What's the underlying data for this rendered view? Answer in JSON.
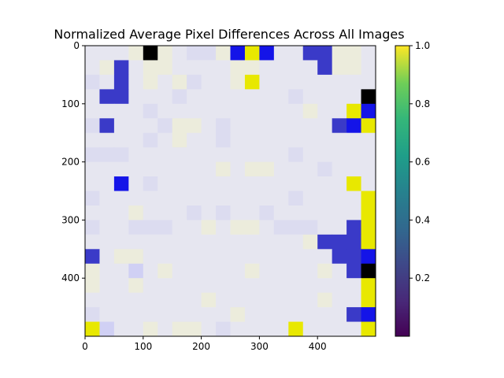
{
  "chart_data": {
    "type": "heatmap",
    "title": "Normalized Average Pixel Differences Across All Images",
    "grid": false,
    "xlim": [
      0,
      500
    ],
    "ylim": [
      500,
      0
    ],
    "x_ticks": [
      "0",
      "100",
      "200",
      "300",
      "400"
    ],
    "x_tick_values": [
      0,
      100,
      200,
      300,
      400
    ],
    "y_ticks": [
      "0",
      "100",
      "200",
      "300",
      "400"
    ],
    "y_tick_values": [
      0,
      100,
      200,
      300,
      400
    ],
    "colorbar": {
      "range": [
        0.0,
        1.0
      ],
      "ticks": [
        "0.2",
        "0.4",
        "0.6",
        "0.8",
        "1.0"
      ],
      "tick_values": [
        0.2,
        0.4,
        0.6,
        0.8,
        1.0
      ],
      "colormap": "viridis"
    },
    "cell_size": 25,
    "palette": {
      "W": "#ffffff",
      "L": "#e6e6f0",
      "M": "#dcdcf0",
      "P": "#d0d0f4",
      "C": "#ececdc",
      "Y": "#e8e800",
      "B": "#1414e8",
      "D": "#3a3ac8",
      "K": "#000000",
      "G": "#8a8a70",
      "S": "#5a5aa8"
    },
    "rows": [
      "LLLCKCLMMCBYBLLDDCCL",
      "LCDLCCLLLLCCLLLLDCCL",
      "MLDLCLCMLLCYLLLLLLLL",
      "LDDLLLMLLLLLLLMLLLLK",
      "LLLLMLLLLLLLLLLCLLYB",
      "MDLLLMCCLMLLLLLLLDBY",
      "LLLLMLCLLMLLLLLLLLLL",
      "MMMLLLLLLLLLLLMLLLLL",
      "LLLLLLLLLCLCCLLLMLLL",
      "LLBLMLLLLLLLLLLLLLYL",
      "MLLLLLLLLLLLLLMLLLLY",
      "LLLCLLLMLMLLMLLLLLLY",
      "MLLMMMLLCLCCLMMMLLDY",
      "LLLLLLLLLLLLLLLCDDDY",
      "DLCCLLLLLLLLLLLLLDDB",
      "CLLPLCLLLLLCLLLLCLDK",
      "CLLCLLLLLLLLLLLLLLLY",
      "LLLLLLLLCLLLLLLLCLLY",
      "MLLLLLLLLLCLLLLLLLDB",
      "YPLLCLCCLMLLLLYLLLLY",
      "LMLLLCLLLLLLLLLSLLDB",
      "LLSGLLLGLLSSLLLSDLLY"
    ]
  }
}
